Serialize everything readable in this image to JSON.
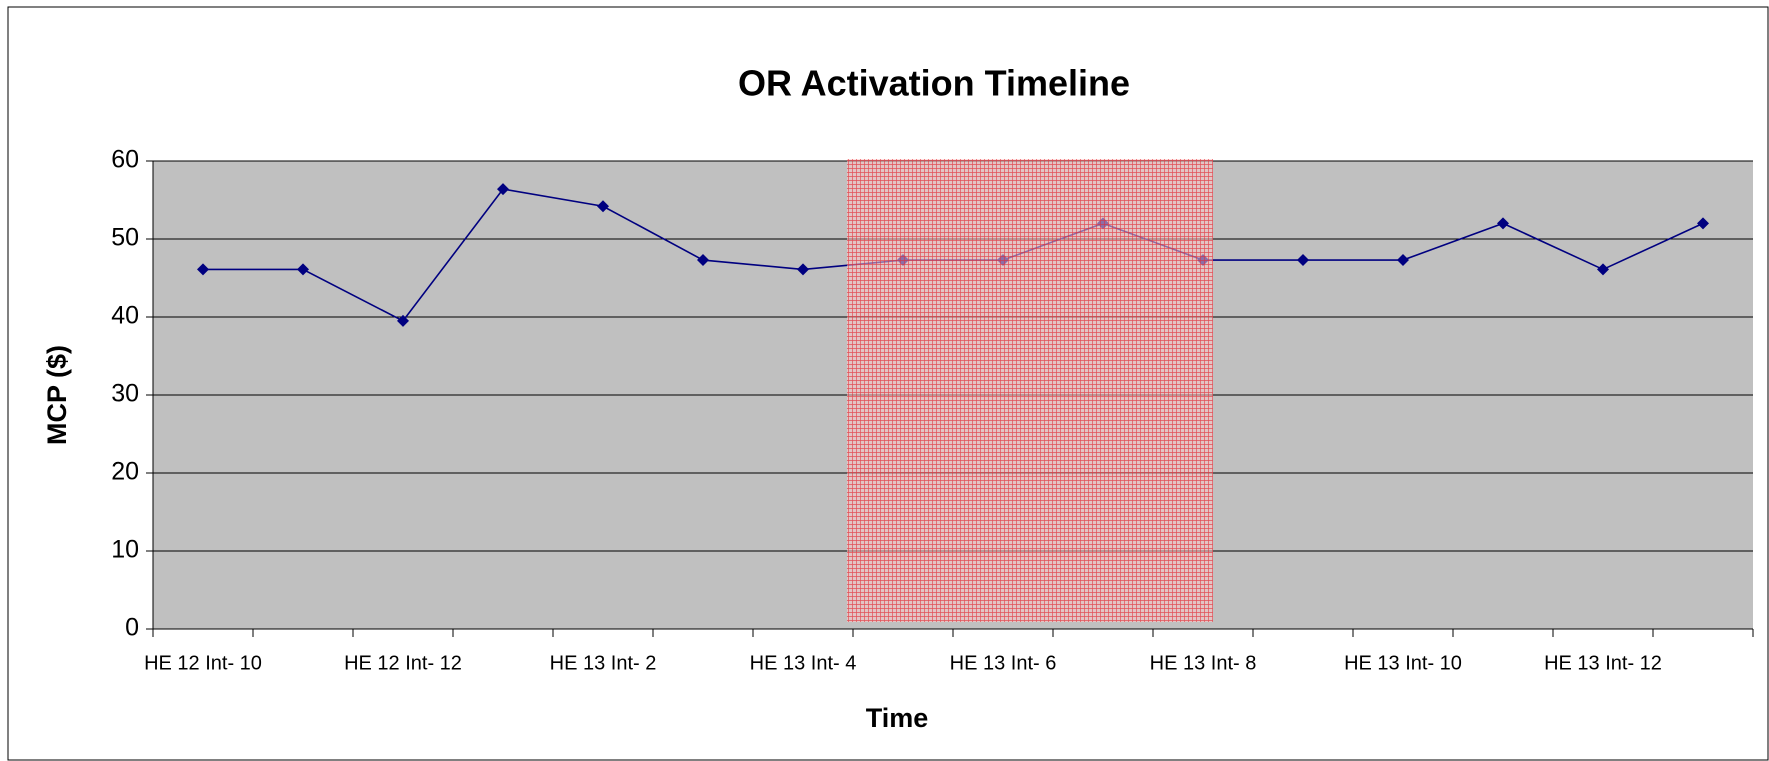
{
  "chart_data": {
    "type": "line",
    "title": "OR Activation Timeline",
    "x_label": "Time",
    "y_label": "MCP ($)",
    "categories": [
      "HE 12 Int- 10",
      null,
      "HE 12 Int- 12",
      null,
      "HE 13 Int- 2",
      null,
      "HE 13 Int- 4",
      null,
      "HE 13 Int- 6",
      null,
      "HE 13 Int- 8",
      null,
      "HE 13 Int- 10",
      null,
      "HE 13 Int- 12",
      null
    ],
    "series": [
      {
        "name": "MCP",
        "color": "#000080",
        "values": [
          46.1,
          46.1,
          39.5,
          56.4,
          54.2,
          47.3,
          46.1,
          47.3,
          47.3,
          52.0,
          47.3,
          47.3,
          47.3,
          52.0,
          46.1,
          52.0
        ]
      }
    ],
    "ylim": [
      0,
      60
    ],
    "yticks": [
      0,
      10,
      20,
      30,
      40,
      50,
      60
    ],
    "grid": true
  }
}
